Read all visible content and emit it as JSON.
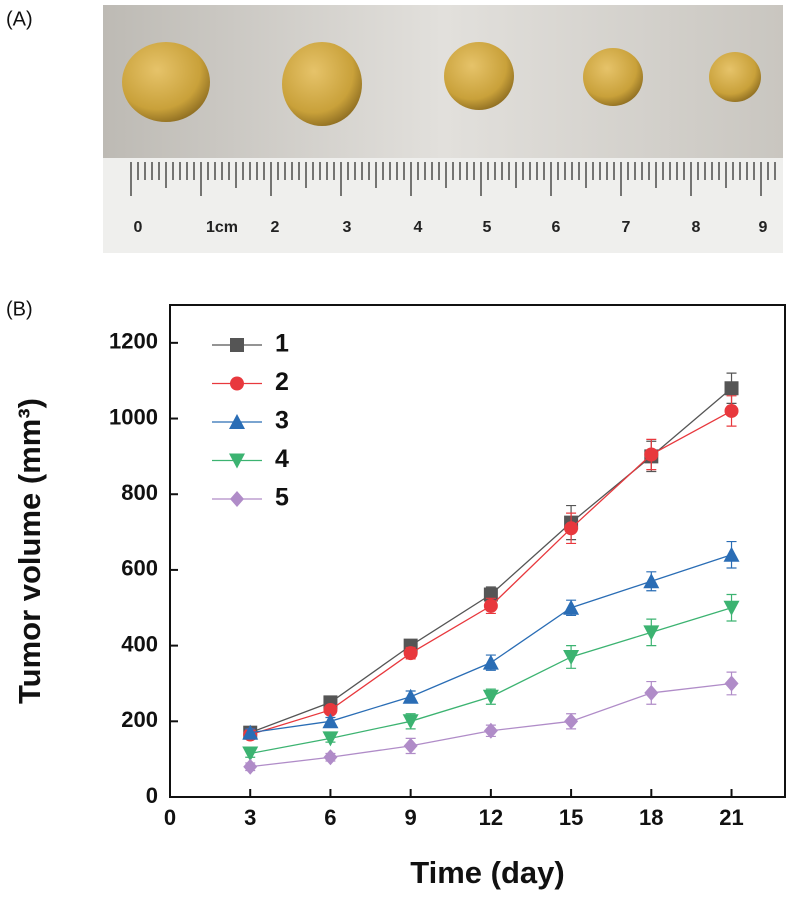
{
  "panel_labels": [
    "(A)",
    "(B)"
  ],
  "photo": {
    "ruler_labels": [
      "0",
      "1cm",
      "2",
      "3",
      "4",
      "5",
      "6",
      "7",
      "8",
      "9"
    ]
  },
  "chart_data": {
    "type": "line",
    "x_label": "Time (day)",
    "y_label": "Tumor volume (mm³)",
    "x": [
      3,
      6,
      9,
      12,
      15,
      18,
      21
    ],
    "xlim": [
      0,
      23
    ],
    "xticks": [
      0,
      3,
      6,
      9,
      12,
      15,
      18,
      21
    ],
    "ylim": [
      0,
      1300
    ],
    "yticks": [
      0,
      200,
      400,
      600,
      800,
      1000,
      1200
    ],
    "legend": "upper left",
    "series": [
      {
        "name": "1",
        "color": "#555555",
        "marker": "square",
        "values": [
          170,
          250,
          400,
          535,
          725,
          900,
          1080
        ],
        "errors": [
          10,
          10,
          10,
          20,
          45,
          40,
          40
        ]
      },
      {
        "name": "2",
        "color": "#e8383d",
        "marker": "circle",
        "values": [
          165,
          230,
          380,
          505,
          710,
          905,
          1020
        ],
        "errors": [
          10,
          10,
          15,
          20,
          40,
          40,
          40
        ]
      },
      {
        "name": "3",
        "color": "#2a6db5",
        "marker": "triangle-up",
        "values": [
          170,
          200,
          265,
          355,
          500,
          570,
          640
        ],
        "errors": [
          10,
          10,
          15,
          20,
          20,
          25,
          35
        ]
      },
      {
        "name": "4",
        "color": "#3cb371",
        "marker": "triangle-down",
        "values": [
          115,
          155,
          200,
          265,
          370,
          435,
          500
        ],
        "errors": [
          10,
          10,
          20,
          20,
          30,
          35,
          35
        ]
      },
      {
        "name": "5",
        "color": "#b08cc8",
        "marker": "diamond",
        "values": [
          80,
          105,
          135,
          175,
          200,
          275,
          300
        ],
        "errors": [
          10,
          10,
          20,
          15,
          20,
          30,
          30
        ]
      }
    ]
  }
}
